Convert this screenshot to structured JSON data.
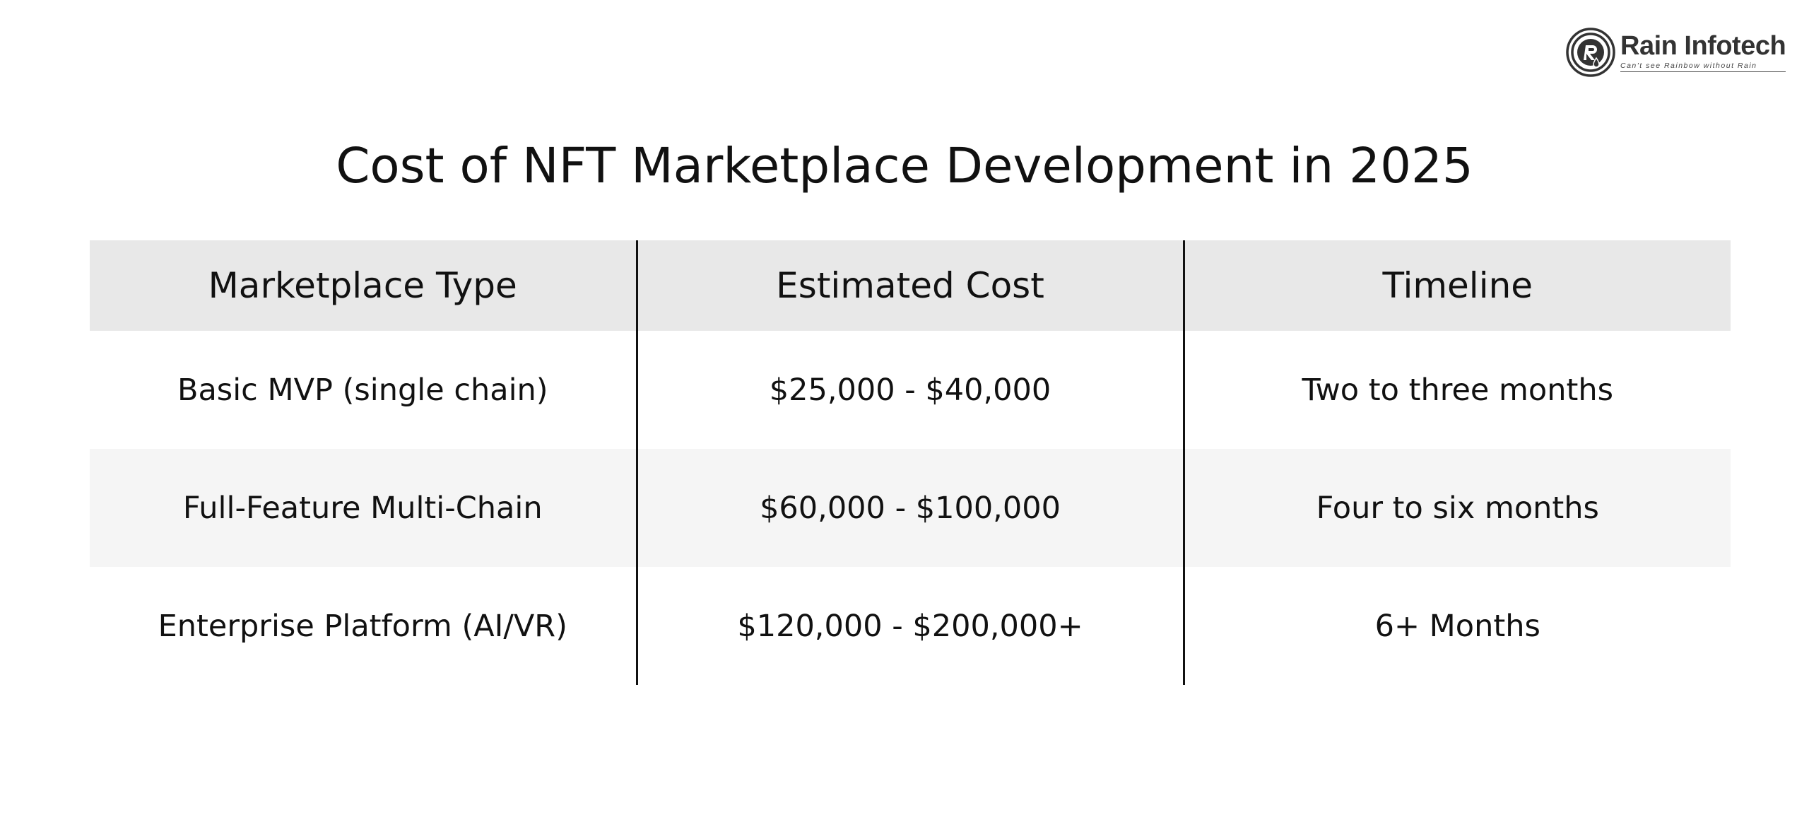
{
  "brand": {
    "name": "Rain Infotech",
    "tagline": "Can't see Rainbow without Rain",
    "logo_icon": "rain-infotech-logo-icon",
    "colors": {
      "logo": "#333333"
    }
  },
  "title": "Cost of NFT Marketplace Development in 2025",
  "table": {
    "headers": [
      "Marketplace Type",
      "Estimated Cost",
      "Timeline"
    ],
    "rows": [
      [
        "Basic MVP (single chain)",
        "$25,000 - $40,000",
        "Two to three months"
      ],
      [
        "Full-Feature Multi-Chain",
        "$60,000 - $100,000",
        "Four to six months"
      ],
      [
        "Enterprise Platform (AI/VR)",
        "$120,000 - $200,000+",
        "6+ Months"
      ]
    ],
    "colors": {
      "header_bg": "#e8e8e8",
      "row_alt_bg": "#f5f5f5",
      "divider": "#111111"
    }
  }
}
